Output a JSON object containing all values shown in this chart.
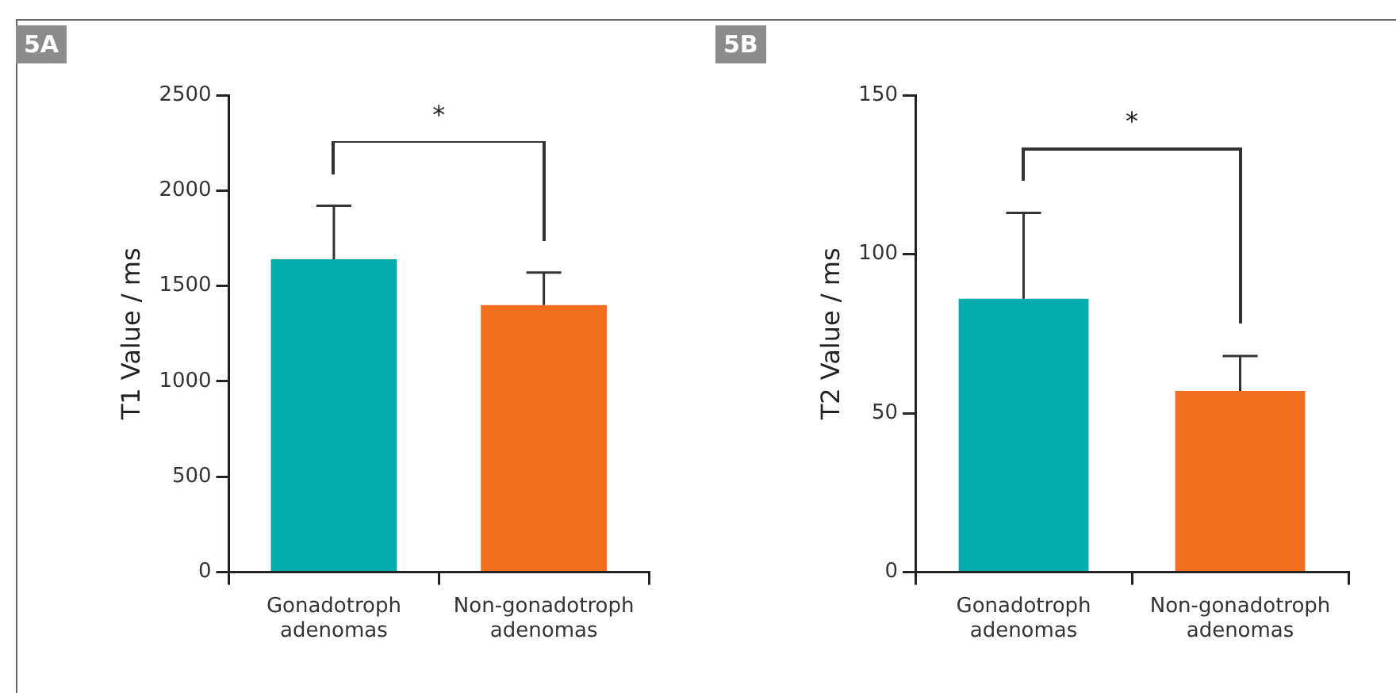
{
  "chart_data": [
    {
      "type": "bar",
      "title": "5A",
      "ylabel": "T1 Value / ms",
      "categories": [
        "Gonadotroph adenomas",
        "Non-gonadotroph adenomas"
      ],
      "values": [
        1640,
        1400
      ],
      "errors": [
        280,
        170
      ],
      "colors": [
        "#00aaad",
        "#f26f21"
      ],
      "ylim": [
        0,
        2500
      ],
      "yticks": [
        0,
        500,
        1000,
        1500,
        2000,
        2500
      ],
      "annotations": [
        "*"
      ]
    },
    {
      "type": "bar",
      "title": "5B",
      "ylabel": "T2 Value / ms",
      "categories": [
        "Gonadotroph adenomas",
        "Non-gonadotroph adenomas"
      ],
      "values": [
        86,
        57
      ],
      "errors": [
        27,
        11
      ],
      "colors": [
        "#00aaad",
        "#f26f21"
      ],
      "ylim": [
        0,
        150
      ],
      "yticks": [
        0,
        50,
        100,
        150
      ],
      "annotations": [
        "*"
      ]
    }
  ]
}
